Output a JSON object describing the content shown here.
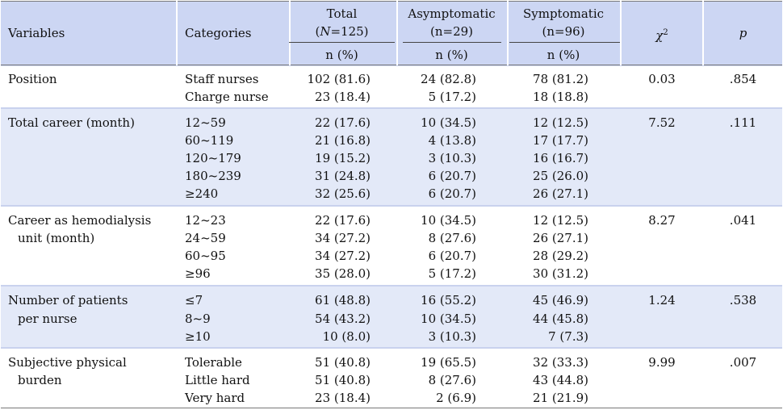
{
  "header": {
    "variables": "Variables",
    "categories": "Categories",
    "total": "Total",
    "total_n_prefix": "(",
    "total_n_italic": "N",
    "total_n_suffix": "=125)",
    "asym": "Asymptomatic",
    "asym_n": "(n=29)",
    "sym": "Symptomatic",
    "sym_n": "(n=96)",
    "npct_total": "n (%)",
    "npct_asym": "n (%)",
    "npct_sym": "n (%)",
    "chi": "χ",
    "chi_sup": "2",
    "p": "p"
  },
  "groups": [
    {
      "variable": [
        "Position"
      ],
      "chi2": "0.03",
      "p": ".854",
      "rows": [
        {
          "cat": "Staff nurses",
          "total": "102 (81.6)",
          "asym": "24 (82.8)",
          "sym": "78 (81.2)"
        },
        {
          "cat": "Charge nurse",
          "total": "23 (18.4)",
          "asym": "5 (17.2)",
          "sym": "18 (18.8)"
        }
      ]
    },
    {
      "variable": [
        "Total career (month)"
      ],
      "chi2": "7.52",
      "p": ".111",
      "rows": [
        {
          "cat": "12~59",
          "total": "22 (17.6)",
          "asym": "10 (34.5)",
          "sym": "12 (12.5)"
        },
        {
          "cat": "60~119",
          "total": "21 (16.8)",
          "asym": "4 (13.8)",
          "sym": "17 (17.7)"
        },
        {
          "cat": "120~179",
          "total": "19 (15.2)",
          "asym": "3 (10.3)",
          "sym": "16 (16.7)"
        },
        {
          "cat": "180~239",
          "total": "31 (24.8)",
          "asym": "6 (20.7)",
          "sym": "25 (26.0)"
        },
        {
          "cat": "≥240",
          "total": "32 (25.6)",
          "asym": "6 (20.7)",
          "sym": "26 (27.1)"
        }
      ]
    },
    {
      "variable": [
        "Career as hemodialysis",
        "unit (month)"
      ],
      "chi2": "8.27",
      "p": ".041",
      "rows": [
        {
          "cat": "12~23",
          "total": "22 (17.6)",
          "asym": "10 (34.5)",
          "sym": "12 (12.5)"
        },
        {
          "cat": "24~59",
          "total": "34 (27.2)",
          "asym": "8 (27.6)",
          "sym": "26 (27.1)"
        },
        {
          "cat": "60~95",
          "total": "34 (27.2)",
          "asym": "6 (20.7)",
          "sym": "28 (29.2)"
        },
        {
          "cat": "≥96",
          "total": "35 (28.0)",
          "asym": "5 (17.2)",
          "sym": "30 (31.2)"
        }
      ]
    },
    {
      "variable": [
        "Number of patients",
        "per nurse"
      ],
      "chi2": "1.24",
      "p": ".538",
      "rows": [
        {
          "cat": "≤7",
          "total": "61 (48.8)",
          "asym": "16 (55.2)",
          "sym": "45 (46.9)"
        },
        {
          "cat": "8~9",
          "total": "54 (43.2)",
          "asym": "10 (34.5)",
          "sym": "44 (45.8)"
        },
        {
          "cat": "≥10",
          "total": "10 (8.0)",
          "asym": "3 (10.3)",
          "sym": "7 (7.3)"
        }
      ]
    },
    {
      "variable": [
        "Subjective physical",
        "burden"
      ],
      "chi2": "9.99",
      "p": ".007",
      "rows": [
        {
          "cat": "Tolerable",
          "total": "51 (40.8)",
          "asym": "19 (65.5)",
          "sym": "32 (33.3)"
        },
        {
          "cat": "Little hard",
          "total": "51 (40.8)",
          "asym": "8 (27.6)",
          "sym": "43 (44.8)"
        },
        {
          "cat": "Very hard",
          "total": "23 (18.4)",
          "asym": "2 (6.9)",
          "sym": "21 (21.9)"
        }
      ]
    }
  ]
}
